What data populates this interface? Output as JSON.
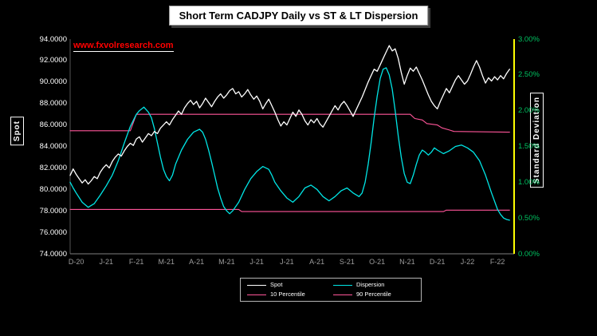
{
  "title": "Short Term CADJPY Daily vs ST & LT Dispersion",
  "watermark": "www.fxvolresearch.com",
  "axes": {
    "left": {
      "label": "Spot",
      "ticks": [
        "94.0000",
        "92.0000",
        "90.0000",
        "88.0000",
        "86.0000",
        "84.0000",
        "82.0000",
        "80.0000",
        "78.0000",
        "76.0000",
        "74.0000"
      ]
    },
    "right": {
      "label": "Standard Deviation",
      "ticks": [
        "3.00%",
        "2.50%",
        "2.00%",
        "1.50%",
        "1.00%",
        "0.50%",
        "0.00%"
      ]
    },
    "x": {
      "ticks": [
        "D-20",
        "J-21",
        "F-21",
        "M-21",
        "A-21",
        "M-21",
        "J-21",
        "J-21",
        "A-21",
        "S-21",
        "O-21",
        "N-21",
        "D-21",
        "J-22",
        "F-22"
      ]
    }
  },
  "legend": [
    {
      "id": "spot",
      "label": "Spot",
      "color": "#ffffff"
    },
    {
      "id": "dispersion",
      "label": "Dispersion",
      "color": "#00e6e6"
    },
    {
      "id": "p10",
      "label": "10 Percentile",
      "color": "#ff5599"
    },
    {
      "id": "p90",
      "label": "90 Percentile",
      "color": "#ff5599"
    }
  ],
  "chart_data": {
    "type": "line",
    "title": "Short Term CADJPY Daily vs ST & LT Dispersion",
    "x_axis": {
      "tick_labels": [
        "D-20",
        "J-21",
        "F-21",
        "M-21",
        "A-21",
        "M-21",
        "J-21",
        "J-21",
        "A-21",
        "S-21",
        "O-21",
        "N-21",
        "D-21",
        "J-22",
        "F-22"
      ],
      "range": [
        -0.2,
        14.55
      ]
    },
    "left_axis": {
      "label": "Spot",
      "min": 74,
      "max": 94
    },
    "right_axis": {
      "label": "Standard Deviation",
      "min": 0,
      "max": 3,
      "unit": "%"
    },
    "grid": false,
    "legend_position": "bottom-center",
    "series": [
      {
        "id": "p10",
        "name": "10 Percentile",
        "axis": "right",
        "color": "#ff5599",
        "width": 1.1,
        "points": [
          [
            -0.2,
            0.62
          ],
          [
            5.4,
            0.62
          ],
          [
            5.5,
            0.59
          ],
          [
            12.2,
            0.59
          ],
          [
            12.3,
            0.61
          ],
          [
            14.4,
            0.61
          ]
        ]
      },
      {
        "id": "p90",
        "name": "90 Percentile",
        "axis": "right",
        "color": "#ff5599",
        "width": 1.1,
        "points": [
          [
            -0.2,
            1.72
          ],
          [
            1.8,
            1.72
          ],
          [
            2.0,
            1.95
          ],
          [
            11.1,
            1.95
          ],
          [
            11.25,
            1.89
          ],
          [
            11.5,
            1.87
          ],
          [
            11.65,
            1.82
          ],
          [
            12.0,
            1.8
          ],
          [
            12.15,
            1.76
          ],
          [
            12.4,
            1.73
          ],
          [
            12.55,
            1.71
          ],
          [
            14.4,
            1.7
          ]
        ]
      },
      {
        "id": "dispersion",
        "name": "Dispersion",
        "axis": "right",
        "color": "#00e6e6",
        "width": 1.3,
        "points": [
          [
            -0.2,
            1.0
          ],
          [
            -0.1,
            0.92
          ],
          [
            0,
            0.85
          ],
          [
            0.2,
            0.72
          ],
          [
            0.4,
            0.65
          ],
          [
            0.6,
            0.7
          ],
          [
            0.8,
            0.82
          ],
          [
            1,
            0.95
          ],
          [
            1.2,
            1.1
          ],
          [
            1.4,
            1.3
          ],
          [
            1.6,
            1.55
          ],
          [
            1.8,
            1.78
          ],
          [
            2,
            1.95
          ],
          [
            2.1,
            2.0
          ],
          [
            2.25,
            2.05
          ],
          [
            2.4,
            1.98
          ],
          [
            2.5,
            1.9
          ],
          [
            2.6,
            1.75
          ],
          [
            2.7,
            1.55
          ],
          [
            2.8,
            1.35
          ],
          [
            2.9,
            1.18
          ],
          [
            3,
            1.08
          ],
          [
            3.1,
            1.02
          ],
          [
            3.2,
            1.1
          ],
          [
            3.3,
            1.25
          ],
          [
            3.5,
            1.45
          ],
          [
            3.7,
            1.6
          ],
          [
            3.9,
            1.7
          ],
          [
            4.1,
            1.74
          ],
          [
            4.2,
            1.7
          ],
          [
            4.3,
            1.6
          ],
          [
            4.4,
            1.45
          ],
          [
            4.5,
            1.28
          ],
          [
            4.6,
            1.1
          ],
          [
            4.7,
            0.92
          ],
          [
            4.8,
            0.78
          ],
          [
            4.9,
            0.66
          ],
          [
            5,
            0.6
          ],
          [
            5.1,
            0.56
          ],
          [
            5.2,
            0.6
          ],
          [
            5.4,
            0.72
          ],
          [
            5.6,
            0.9
          ],
          [
            5.8,
            1.05
          ],
          [
            6,
            1.15
          ],
          [
            6.2,
            1.22
          ],
          [
            6.4,
            1.18
          ],
          [
            6.5,
            1.1
          ],
          [
            6.6,
            1.0
          ],
          [
            6.8,
            0.88
          ],
          [
            7,
            0.78
          ],
          [
            7.2,
            0.72
          ],
          [
            7.4,
            0.8
          ],
          [
            7.6,
            0.92
          ],
          [
            7.8,
            0.96
          ],
          [
            8,
            0.9
          ],
          [
            8.2,
            0.8
          ],
          [
            8.4,
            0.74
          ],
          [
            8.6,
            0.8
          ],
          [
            8.8,
            0.88
          ],
          [
            9,
            0.92
          ],
          [
            9.2,
            0.85
          ],
          [
            9.4,
            0.8
          ],
          [
            9.5,
            0.85
          ],
          [
            9.6,
            1.0
          ],
          [
            9.7,
            1.25
          ],
          [
            9.8,
            1.55
          ],
          [
            9.9,
            1.9
          ],
          [
            10,
            2.2
          ],
          [
            10.1,
            2.45
          ],
          [
            10.2,
            2.58
          ],
          [
            10.3,
            2.6
          ],
          [
            10.4,
            2.5
          ],
          [
            10.5,
            2.3
          ],
          [
            10.6,
            2.0
          ],
          [
            10.7,
            1.65
          ],
          [
            10.8,
            1.35
          ],
          [
            10.9,
            1.12
          ],
          [
            11,
            1.0
          ],
          [
            11.1,
            0.98
          ],
          [
            11.2,
            1.1
          ],
          [
            11.3,
            1.25
          ],
          [
            11.4,
            1.38
          ],
          [
            11.5,
            1.45
          ],
          [
            11.6,
            1.42
          ],
          [
            11.7,
            1.38
          ],
          [
            11.8,
            1.42
          ],
          [
            11.9,
            1.48
          ],
          [
            12,
            1.45
          ],
          [
            12.2,
            1.4
          ],
          [
            12.4,
            1.44
          ],
          [
            12.6,
            1.5
          ],
          [
            12.8,
            1.52
          ],
          [
            13,
            1.48
          ],
          [
            13.2,
            1.42
          ],
          [
            13.4,
            1.3
          ],
          [
            13.6,
            1.1
          ],
          [
            13.8,
            0.85
          ],
          [
            14,
            0.62
          ],
          [
            14.1,
            0.55
          ],
          [
            14.2,
            0.5
          ],
          [
            14.3,
            0.48
          ],
          [
            14.4,
            0.47
          ]
        ]
      },
      {
        "id": "spot",
        "name": "Spot",
        "axis": "left",
        "color": "#ffffff",
        "width": 1.3,
        "points": [
          [
            -0.2,
            81.3
          ],
          [
            -0.1,
            81.9
          ],
          [
            0,
            81.4
          ],
          [
            0.1,
            81.0
          ],
          [
            0.2,
            80.6
          ],
          [
            0.3,
            80.9
          ],
          [
            0.4,
            80.5
          ],
          [
            0.5,
            80.8
          ],
          [
            0.6,
            81.2
          ],
          [
            0.7,
            81.0
          ],
          [
            0.8,
            81.6
          ],
          [
            0.9,
            82.0
          ],
          [
            1,
            82.3
          ],
          [
            1.1,
            82.0
          ],
          [
            1.2,
            82.6
          ],
          [
            1.3,
            83.0
          ],
          [
            1.4,
            83.3
          ],
          [
            1.5,
            83.1
          ],
          [
            1.6,
            83.6
          ],
          [
            1.7,
            84.0
          ],
          [
            1.8,
            84.3
          ],
          [
            1.9,
            84.1
          ],
          [
            2,
            84.7
          ],
          [
            2.1,
            84.9
          ],
          [
            2.2,
            84.4
          ],
          [
            2.3,
            84.8
          ],
          [
            2.4,
            85.2
          ],
          [
            2.5,
            85.0
          ],
          [
            2.6,
            85.4
          ],
          [
            2.7,
            85.2
          ],
          [
            2.8,
            85.7
          ],
          [
            2.9,
            86.0
          ],
          [
            3,
            86.3
          ],
          [
            3.1,
            86.0
          ],
          [
            3.2,
            86.5
          ],
          [
            3.3,
            86.9
          ],
          [
            3.4,
            87.3
          ],
          [
            3.5,
            87.0
          ],
          [
            3.6,
            87.6
          ],
          [
            3.7,
            88.0
          ],
          [
            3.8,
            88.3
          ],
          [
            3.9,
            87.9
          ],
          [
            4,
            88.2
          ],
          [
            4.1,
            87.6
          ],
          [
            4.2,
            88.0
          ],
          [
            4.3,
            88.5
          ],
          [
            4.4,
            88.1
          ],
          [
            4.5,
            87.7
          ],
          [
            4.6,
            88.2
          ],
          [
            4.7,
            88.6
          ],
          [
            4.8,
            88.9
          ],
          [
            4.9,
            88.5
          ],
          [
            5,
            88.8
          ],
          [
            5.1,
            89.2
          ],
          [
            5.2,
            89.4
          ],
          [
            5.3,
            88.9
          ],
          [
            5.4,
            89.1
          ],
          [
            5.5,
            88.6
          ],
          [
            5.6,
            88.9
          ],
          [
            5.7,
            89.3
          ],
          [
            5.8,
            88.8
          ],
          [
            5.9,
            88.4
          ],
          [
            6,
            88.7
          ],
          [
            6.1,
            88.2
          ],
          [
            6.2,
            87.5
          ],
          [
            6.3,
            88.0
          ],
          [
            6.4,
            88.4
          ],
          [
            6.5,
            87.8
          ],
          [
            6.6,
            87.2
          ],
          [
            6.7,
            86.5
          ],
          [
            6.8,
            85.9
          ],
          [
            6.9,
            86.3
          ],
          [
            7,
            86.0
          ],
          [
            7.1,
            86.6
          ],
          [
            7.2,
            87.2
          ],
          [
            7.3,
            86.8
          ],
          [
            7.4,
            87.4
          ],
          [
            7.5,
            87.0
          ],
          [
            7.6,
            86.4
          ],
          [
            7.7,
            86.0
          ],
          [
            7.8,
            86.5
          ],
          [
            7.9,
            86.2
          ],
          [
            8,
            86.6
          ],
          [
            8.1,
            86.1
          ],
          [
            8.2,
            85.8
          ],
          [
            8.3,
            86.3
          ],
          [
            8.4,
            86.8
          ],
          [
            8.5,
            87.3
          ],
          [
            8.6,
            87.8
          ],
          [
            8.7,
            87.4
          ],
          [
            8.8,
            87.9
          ],
          [
            8.9,
            88.2
          ],
          [
            9,
            87.8
          ],
          [
            9.1,
            87.3
          ],
          [
            9.2,
            86.8
          ],
          [
            9.3,
            87.4
          ],
          [
            9.4,
            88.0
          ],
          [
            9.5,
            88.6
          ],
          [
            9.6,
            89.3
          ],
          [
            9.7,
            90.0
          ],
          [
            9.8,
            90.6
          ],
          [
            9.9,
            91.2
          ],
          [
            10,
            91.0
          ],
          [
            10.1,
            91.6
          ],
          [
            10.2,
            92.2
          ],
          [
            10.3,
            92.8
          ],
          [
            10.4,
            93.4
          ],
          [
            10.5,
            92.9
          ],
          [
            10.6,
            93.1
          ],
          [
            10.7,
            92.2
          ],
          [
            10.8,
            90.9
          ],
          [
            10.9,
            89.8
          ],
          [
            11,
            90.6
          ],
          [
            11.1,
            91.3
          ],
          [
            11.2,
            91.0
          ],
          [
            11.3,
            91.4
          ],
          [
            11.4,
            90.8
          ],
          [
            11.5,
            90.2
          ],
          [
            11.6,
            89.5
          ],
          [
            11.7,
            88.8
          ],
          [
            11.8,
            88.2
          ],
          [
            11.9,
            87.8
          ],
          [
            12,
            87.5
          ],
          [
            12.1,
            88.2
          ],
          [
            12.2,
            88.8
          ],
          [
            12.3,
            89.4
          ],
          [
            12.4,
            89.0
          ],
          [
            12.5,
            89.6
          ],
          [
            12.6,
            90.2
          ],
          [
            12.7,
            90.6
          ],
          [
            12.8,
            90.2
          ],
          [
            12.9,
            89.8
          ],
          [
            13,
            90.1
          ],
          [
            13.1,
            90.7
          ],
          [
            13.2,
            91.4
          ],
          [
            13.3,
            92.0
          ],
          [
            13.4,
            91.4
          ],
          [
            13.5,
            90.6
          ],
          [
            13.6,
            89.9
          ],
          [
            13.7,
            90.4
          ],
          [
            13.8,
            90.1
          ],
          [
            13.9,
            90.5
          ],
          [
            14,
            90.2
          ],
          [
            14.1,
            90.6
          ],
          [
            14.2,
            90.3
          ],
          [
            14.3,
            90.8
          ],
          [
            14.4,
            91.2
          ]
        ]
      }
    ]
  }
}
